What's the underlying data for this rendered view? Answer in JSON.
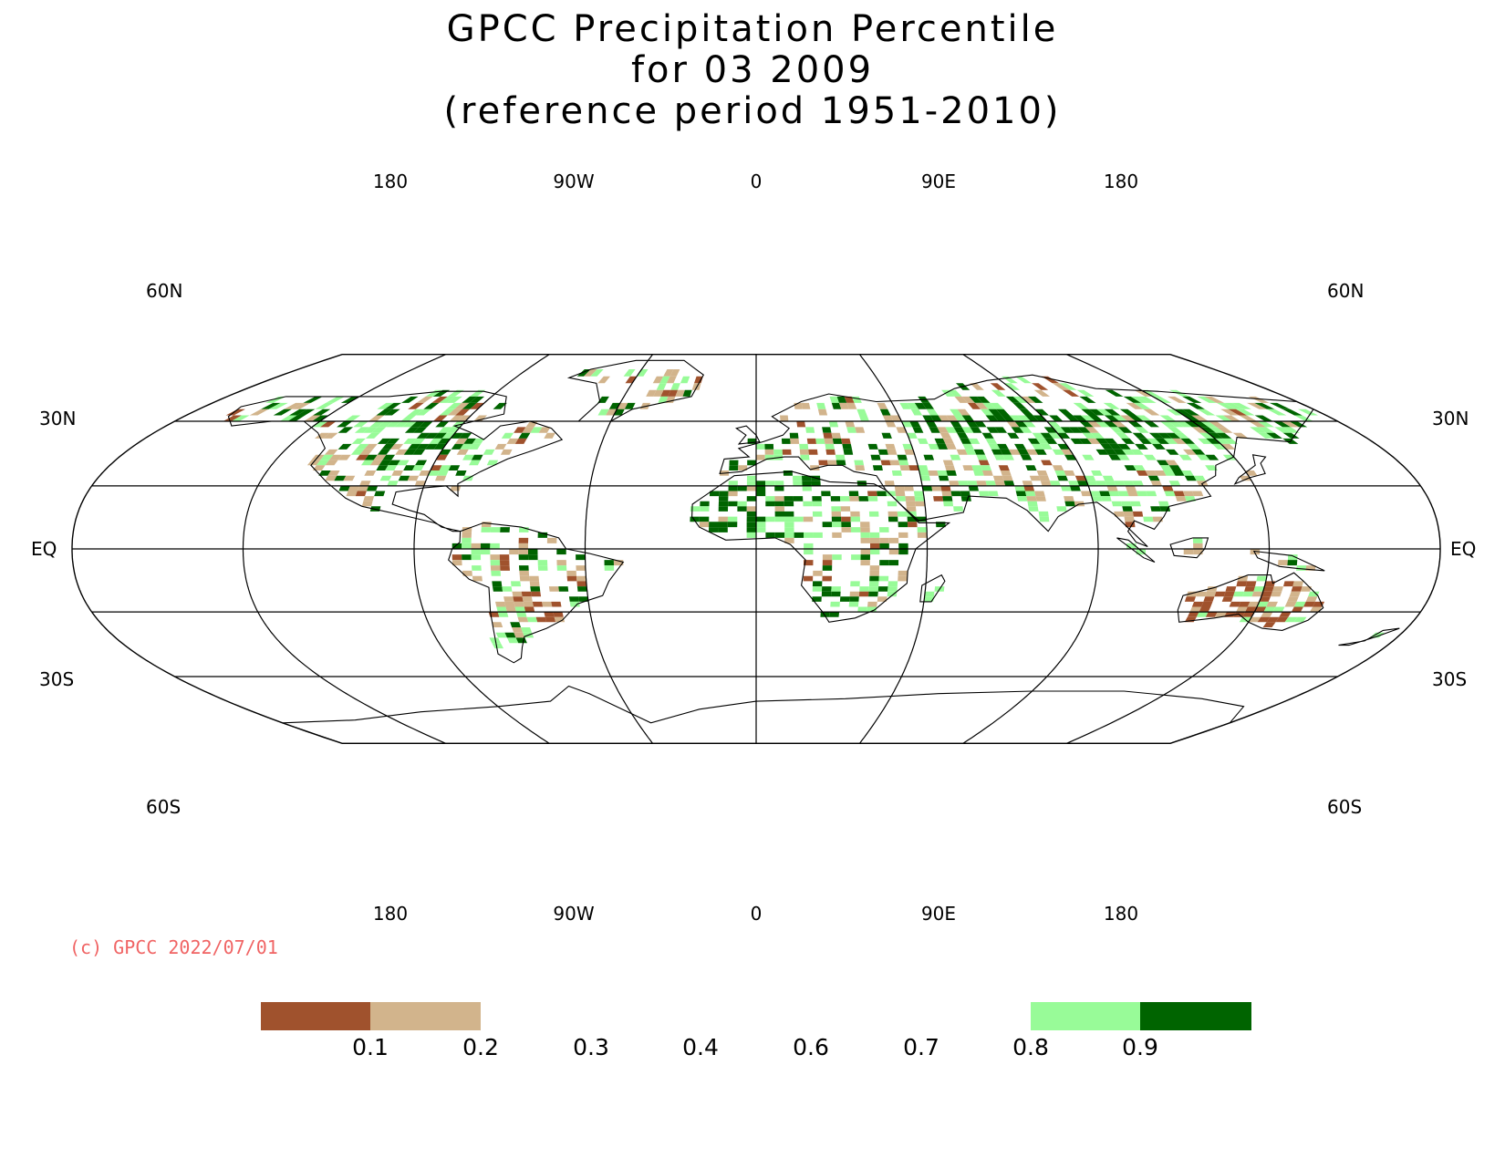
{
  "title": {
    "line1": "GPCC Precipitation Percentile",
    "line2": "for 03 2009",
    "line3": "(reference period 1951-2010)"
  },
  "axes": {
    "lon_top": [
      "180",
      "90W",
      "0",
      "90E",
      "180"
    ],
    "lon_bottom": [
      "180",
      "90W",
      "0",
      "90E",
      "180"
    ],
    "lat_left": [
      "60N",
      "30N",
      "EQ",
      "30S",
      "60S"
    ],
    "lat_right": [
      "60N",
      "30N",
      "EQ",
      "30S",
      "60S"
    ]
  },
  "copyright": "(c) GPCC 2022/07/01",
  "legend": {
    "tick_labels": [
      "0.1",
      "0.2",
      "0.3",
      "0.4",
      "0.6",
      "0.7",
      "0.8",
      "0.9"
    ],
    "bins": [
      {
        "range": "< 0.1",
        "color": "#a0522d"
      },
      {
        "range": "0.1 - 0.2",
        "color": "#d2b48c"
      },
      {
        "range": "0.2 - 0.8",
        "color": "#ffffff"
      },
      {
        "range": "0.8 - 0.9",
        "color": "#98fb98"
      },
      {
        "range": "> 0.9",
        "color": "#006400"
      }
    ]
  },
  "colors": {
    "very_dry": "#a0522d",
    "dry": "#d2b48c",
    "wet": "#98fb98",
    "very_wet": "#006400",
    "copyright": "#f06464"
  }
}
